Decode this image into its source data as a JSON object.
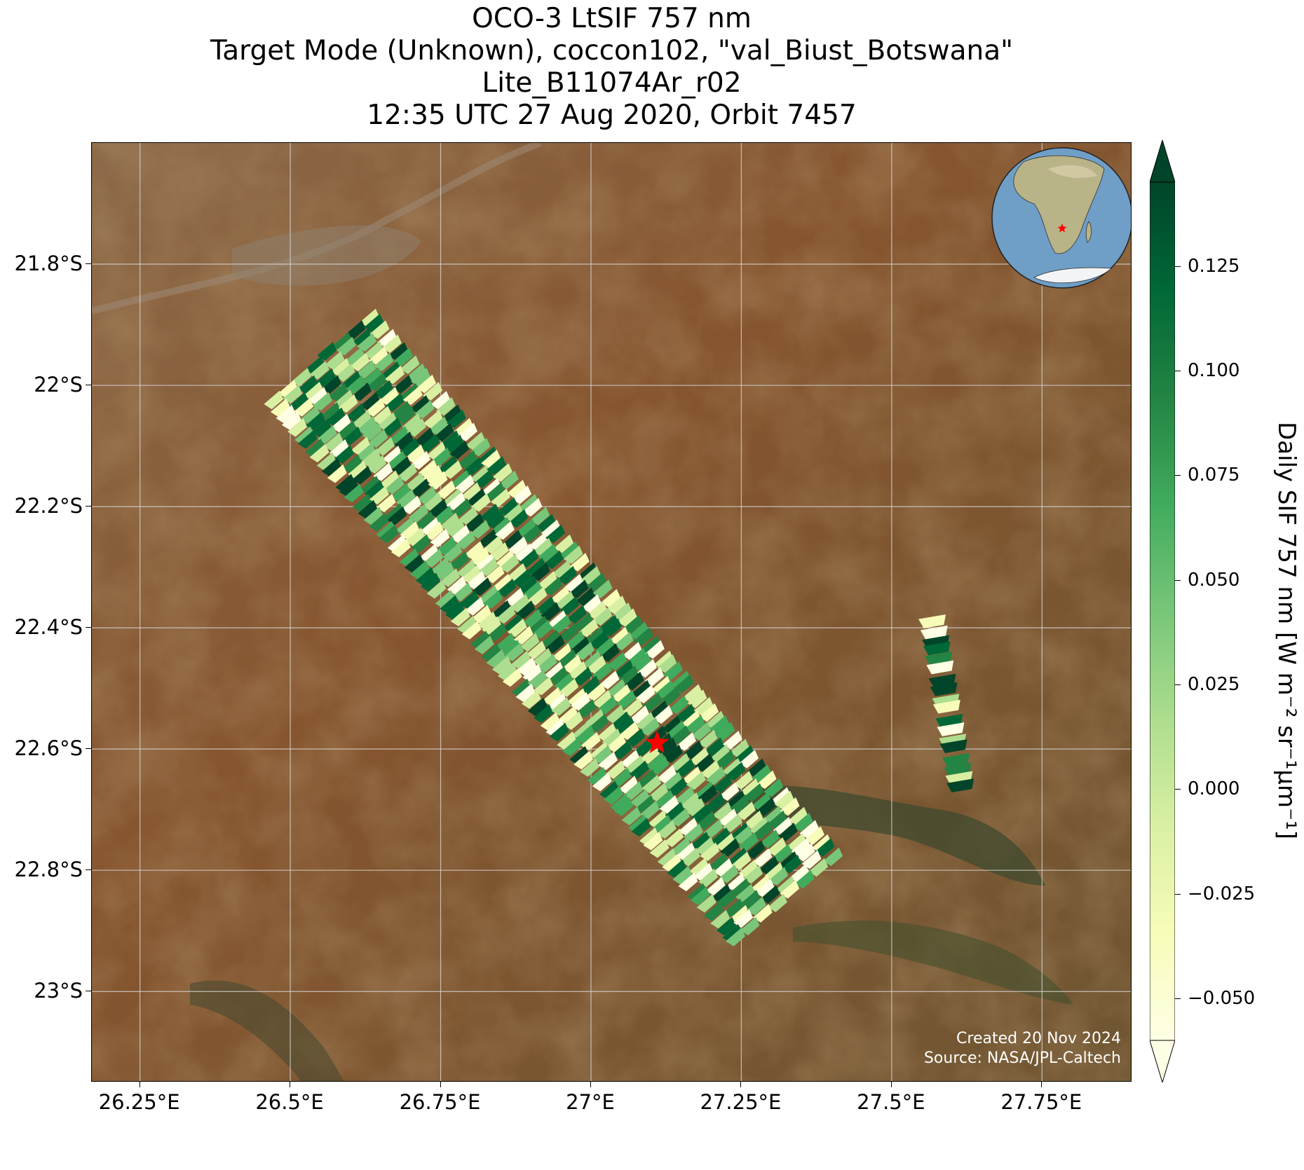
{
  "title_lines": [
    "OCO-3 LtSIF 757 nm",
    "Target Mode (Unknown), coccon102, \"val_Biust_Botswana\"",
    "Lite_B11074Ar_r02",
    "12:35 UTC 27 Aug 2020, Orbit 7457"
  ],
  "map": {
    "lon_range": [
      26.17,
      27.9
    ],
    "lat_range": [
      -23.15,
      -21.6
    ],
    "x_ticks": [
      "26.25°E",
      "26.5°E",
      "26.75°E",
      "27°E",
      "27.25°E",
      "27.5°E",
      "27.75°E"
    ],
    "x_tick_values": [
      26.25,
      26.5,
      26.75,
      27.0,
      27.25,
      27.5,
      27.75
    ],
    "y_ticks": [
      "21.8°S",
      "22°S",
      "22.2°S",
      "22.4°S",
      "22.6°S",
      "22.8°S",
      "23°S"
    ],
    "y_tick_values": [
      -21.8,
      -22.0,
      -22.2,
      -22.4,
      -22.6,
      -22.8,
      -23.0
    ],
    "grid": true,
    "basemap_colors": {
      "terrain": "#8a5a32",
      "dark_terrain": "#5f4a2c",
      "ridge": "#3e4a2e"
    },
    "target_marker": {
      "lon": 27.11,
      "lat": -22.59,
      "symbol": "star",
      "color": "#ff0000"
    },
    "swaths": [
      {
        "start": [
          26.55,
          -21.95
        ],
        "end": [
          27.33,
          -22.85
        ],
        "width_deg": 0.24
      },
      {
        "start": [
          27.57,
          -22.38
        ],
        "end": [
          27.62,
          -22.67
        ],
        "width_deg": 0.04
      }
    ],
    "credits": [
      "Created 20 Nov 2024",
      "Source: NASA/JPL-Caltech"
    ]
  },
  "inset_globe": {
    "description": "orthographic globe centered on southern Africa",
    "marker_color": "#ff0000"
  },
  "colorbar": {
    "label": "Daily SIF 757 nm [W m⁻² sr⁻¹µm⁻¹]",
    "range": [
      -0.06,
      0.145
    ],
    "ticks": [
      "0.125",
      "0.100",
      "0.075",
      "0.050",
      "0.025",
      "0.000",
      "−0.025",
      "−0.050"
    ],
    "tick_values": [
      0.125,
      0.1,
      0.075,
      0.05,
      0.025,
      0.0,
      -0.025,
      -0.05
    ],
    "colormap": "YlGn",
    "colors": [
      "#ffffe5",
      "#f7fcb9",
      "#d9f0a3",
      "#addd8e",
      "#78c679",
      "#41ab5d",
      "#238443",
      "#006837",
      "#004529"
    ],
    "extend": "both"
  }
}
